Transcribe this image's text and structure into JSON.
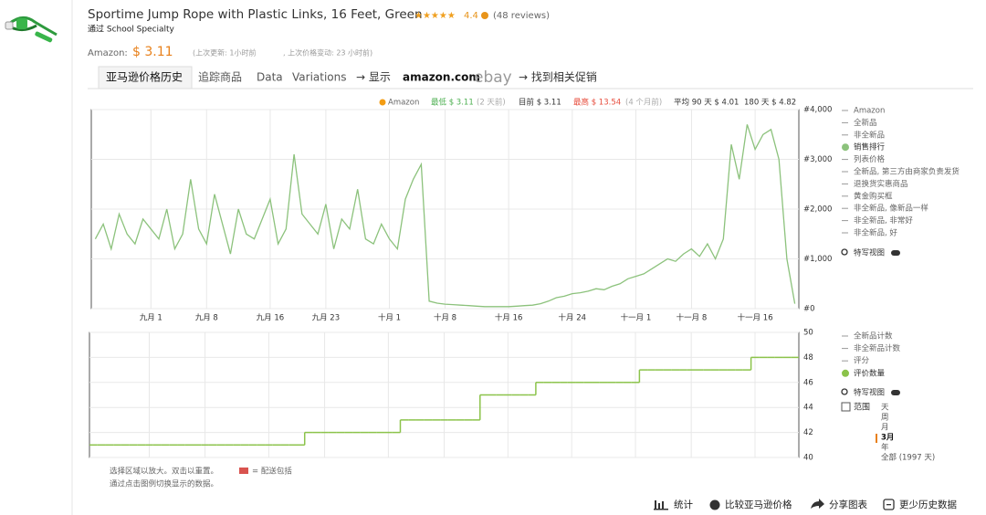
{
  "header": {
    "title": "Sportime Jump Rope with Plastic Links, 16 Feet, Green",
    "rating": "4.4",
    "reviews": "(48 reviews)",
    "seller": "通过 School Specialty",
    "price_label": "Amazon:",
    "price": "$ 3.11",
    "last_update": "(上次更新:  1小时前",
    "last_change": ", 上次价格变动: 23 小时前)"
  },
  "tabs": [
    "亚马逊价格历史",
    "追踪商品",
    "Data",
    "Variations",
    "→ 显示",
    "amazon.com",
    "ebay",
    "→ 找到相关促销"
  ],
  "stats": {
    "amazon": "Amazon",
    "lowest": "最低 $ 3.11",
    "lowest_when": "(2 天前)",
    "current": "目前 $ 3.11",
    "highest": "最高 $ 13.54",
    "highest_when": "(4 个月前)",
    "avg90": "平均 90 天 $ 4.01",
    "avg180": "180 天 $ 4.82"
  },
  "chart_data": [
    {
      "type": "line",
      "categories": [
        null,
        null,
        null,
        null,
        null,
        null,
        null,
        "九月 1",
        null,
        null,
        null,
        null,
        null,
        null,
        "九月 8",
        null,
        null,
        null,
        null,
        null,
        null,
        null,
        "九月 16",
        null,
        null,
        null,
        null,
        null,
        null,
        "九月 23",
        null,
        null,
        null,
        null,
        null,
        null,
        null,
        "十月 1",
        null,
        null,
        null,
        null,
        null,
        null,
        "十月 8",
        null,
        null,
        null,
        null,
        null,
        null,
        null,
        "十月 16",
        null,
        null,
        null,
        null,
        null,
        null,
        null,
        "十月 24",
        null,
        null,
        null,
        null,
        null,
        null,
        null,
        "十一月 1",
        null,
        null,
        null,
        null,
        null,
        null,
        "十一月 8",
        null,
        null,
        null,
        null,
        null,
        null,
        null,
        "十一月 16",
        null,
        null,
        null,
        null,
        null
      ],
      "series": [
        {
          "name": "销售排行",
          "color": "#8cc27c",
          "values": [
            1400,
            1700,
            1200,
            1900,
            1500,
            1300,
            1800,
            1600,
            1400,
            2000,
            1200,
            1500,
            2600,
            1600,
            1300,
            2300,
            1700,
            1100,
            2000,
            1500,
            1400,
            1800,
            2200,
            1300,
            1600,
            3100,
            1900,
            1700,
            1500,
            2100,
            1200,
            1800,
            1600,
            2400,
            1400,
            1300,
            1700,
            1400,
            1200,
            2200,
            2600,
            2900,
            150,
            110,
            90,
            80,
            70,
            60,
            50,
            40,
            40,
            40,
            40,
            50,
            60,
            70,
            100,
            150,
            220,
            250,
            300,
            320,
            350,
            400,
            380,
            450,
            500,
            600,
            650,
            700,
            800,
            900,
            1000,
            950,
            1100,
            1200,
            1050,
            1300,
            1000,
            1400,
            3300,
            2600,
            3700,
            3200,
            3500,
            3600,
            3000,
            1000,
            100
          ]
        }
      ],
      "ylim": [
        0,
        4000
      ],
      "yticks": [
        {
          "value": 0,
          "label": "#0"
        },
        {
          "value": 1000,
          "label": "#1,000"
        },
        {
          "value": 2000,
          "label": "#2,000"
        },
        {
          "value": 3000,
          "label": "#3,000"
        },
        {
          "value": 4000,
          "label": "#4,000"
        }
      ],
      "grid": true,
      "legend_before": [
        "Amazon",
        "全新品",
        "非全新品"
      ],
      "legend_after": [
        "列表价格",
        "全新品, 第三方由商家负责发货",
        "退换货实惠商品",
        "黄金购买框",
        "非全新品, 像新品一样",
        "非全新品, 非常好",
        "非全新品, 好"
      ],
      "closeup": "特写视图"
    },
    {
      "type": "line",
      "step": true,
      "series": [
        {
          "name": "评价数量",
          "color": "#8bc34a",
          "values": [
            41,
            41,
            41,
            41,
            41,
            41,
            41,
            41,
            41,
            41,
            41,
            41,
            41,
            41,
            41,
            41,
            41,
            41,
            41,
            41,
            41,
            41,
            41,
            41,
            41,
            41,
            41,
            42,
            42,
            42,
            42,
            42,
            42,
            42,
            42,
            42,
            42,
            42,
            42,
            43,
            43,
            43,
            43,
            43,
            43,
            43,
            43,
            43,
            43,
            45,
            45,
            45,
            45,
            45,
            45,
            45,
            46,
            46,
            46,
            46,
            46,
            46,
            46,
            46,
            46,
            46,
            46,
            46,
            46,
            47,
            47,
            47,
            47,
            47,
            47,
            47,
            47,
            47,
            47,
            47,
            47,
            47,
            47,
            48,
            48,
            48,
            48,
            48,
            48
          ]
        }
      ],
      "ylim": [
        40,
        50
      ],
      "yticks": [
        40,
        42,
        44,
        46,
        48,
        50
      ],
      "grid": true,
      "legend_before": [
        "全新品计数",
        "非全新品计数",
        "评分"
      ],
      "legend_after": [],
      "closeup": "特写视图"
    }
  ],
  "range": {
    "label": "范围",
    "options": [
      "天",
      "周",
      "月",
      "3月",
      "年",
      "全部 (1997 天)"
    ]
  },
  "footer": {
    "zoom_hint": "选择区域以放大。双击以重置。",
    "shipping": "= 配送包括",
    "legend_hint": "通过点击图例切换显示的数据。"
  },
  "buttons": [
    "统计",
    "比较亚马逊价格",
    "分享图表",
    "更少历史数据"
  ]
}
